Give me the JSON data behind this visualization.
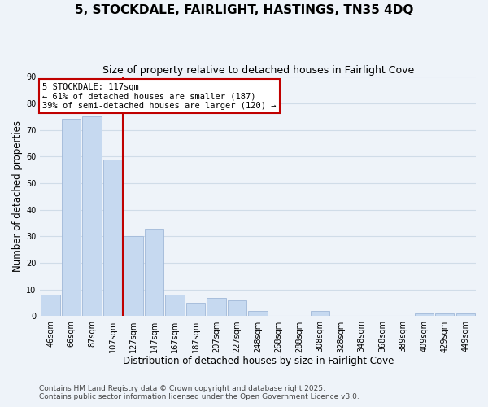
{
  "title": "5, STOCKDALE, FAIRLIGHT, HASTINGS, TN35 4DQ",
  "subtitle": "Size of property relative to detached houses in Fairlight Cove",
  "xlabel": "Distribution of detached houses by size in Fairlight Cove",
  "ylabel": "Number of detached properties",
  "bar_labels": [
    "46sqm",
    "66sqm",
    "87sqm",
    "107sqm",
    "127sqm",
    "147sqm",
    "167sqm",
    "187sqm",
    "207sqm",
    "227sqm",
    "248sqm",
    "268sqm",
    "288sqm",
    "308sqm",
    "328sqm",
    "348sqm",
    "368sqm",
    "389sqm",
    "409sqm",
    "429sqm",
    "449sqm"
  ],
  "bar_values": [
    8,
    74,
    75,
    59,
    30,
    33,
    8,
    5,
    7,
    6,
    2,
    0,
    0,
    2,
    0,
    0,
    0,
    0,
    1,
    1,
    1
  ],
  "bar_color": "#c6d9f0",
  "bar_edge_color": "#a0b8d8",
  "grid_color": "#d0dce8",
  "background_color": "#eef3f9",
  "marker_label": "5 STOCKDALE: 117sqm",
  "marker_line_color": "#c00000",
  "annotation_line1": "← 61% of detached houses are smaller (187)",
  "annotation_line2": "39% of semi-detached houses are larger (120) →",
  "annotation_box_color": "#ffffff",
  "annotation_box_edge": "#c00000",
  "ylim": [
    0,
    90
  ],
  "yticks": [
    0,
    10,
    20,
    30,
    40,
    50,
    60,
    70,
    80,
    90
  ],
  "footer1": "Contains HM Land Registry data © Crown copyright and database right 2025.",
  "footer2": "Contains public sector information licensed under the Open Government Licence v3.0.",
  "title_fontsize": 11,
  "subtitle_fontsize": 9,
  "tick_fontsize": 7,
  "axis_label_fontsize": 8.5,
  "footer_fontsize": 6.5,
  "annotation_fontsize": 7.5
}
